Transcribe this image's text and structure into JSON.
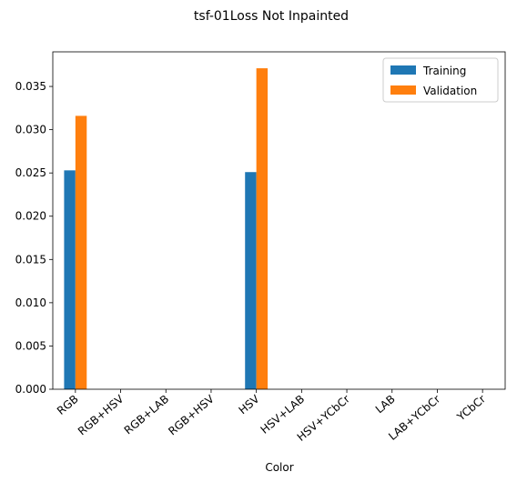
{
  "chart_data": {
    "type": "bar",
    "title": "tsf-01Loss Not Inpainted",
    "xlabel": "Color",
    "ylabel": "",
    "categories": [
      "RGB",
      "RGB+HSV",
      "RGB+LAB",
      "RGB+HSV",
      "HSV",
      "HSV+LAB",
      "HSV+YCbCr",
      "LAB",
      "LAB+YCbCr",
      "YCbCr"
    ],
    "series": [
      {
        "name": "Training",
        "color": "#1f77b4",
        "values": [
          0.0253,
          0,
          0,
          0,
          0.0251,
          0,
          0,
          0,
          0,
          0
        ]
      },
      {
        "name": "Validation",
        "color": "#ff7f0e",
        "values": [
          0.0316,
          0,
          0,
          0,
          0.0371,
          0,
          0,
          0,
          0,
          0
        ]
      }
    ],
    "ylim": [
      0,
      0.039
    ],
    "yticks": [
      0.0,
      0.005,
      0.01,
      0.015,
      0.02,
      0.025,
      0.03,
      0.035
    ],
    "ytick_labels": [
      "0.000",
      "0.005",
      "0.010",
      "0.015",
      "0.020",
      "0.025",
      "0.030",
      "0.035"
    ],
    "legend_position": "top-right",
    "grid": false
  }
}
